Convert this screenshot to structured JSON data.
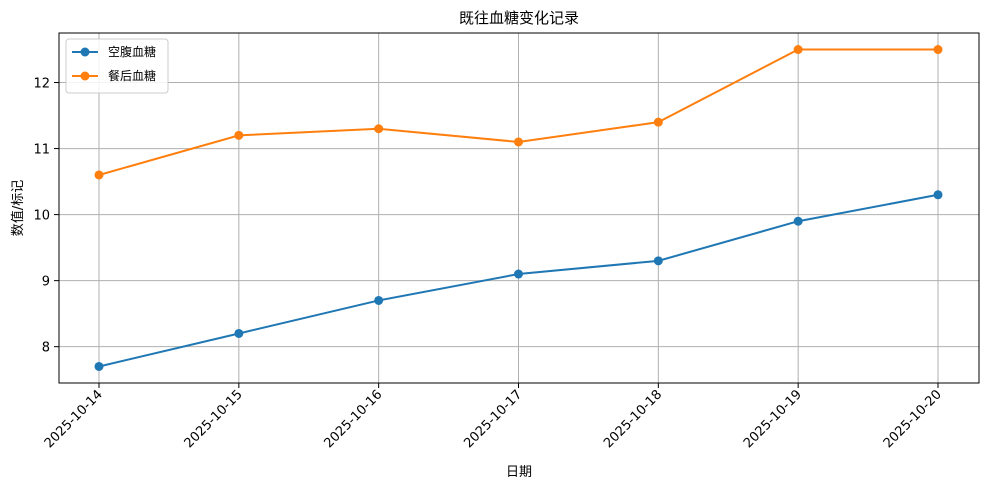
{
  "chart_data": {
    "type": "line",
    "title": "既往血糖变化记录",
    "xlabel": "日期",
    "ylabel": "数值/标记",
    "categories": [
      "2025-10-14",
      "2025-10-15",
      "2025-10-16",
      "2025-10-17",
      "2025-10-18",
      "2025-10-19",
      "2025-10-20"
    ],
    "series": [
      {
        "name": "空腹血糖",
        "color": "#1f77b4",
        "values": [
          7.7,
          8.2,
          8.7,
          9.1,
          9.3,
          9.9,
          10.3
        ]
      },
      {
        "name": "餐后血糖",
        "color": "#ff7f0e",
        "values": [
          10.6,
          11.2,
          11.3,
          11.1,
          11.4,
          12.5,
          12.5
        ]
      }
    ],
    "ylim": [
      7.45,
      12.75
    ],
    "yticks": [
      8,
      9,
      10,
      11,
      12
    ],
    "grid": true,
    "legend_position": "top-left",
    "marker": "circle"
  }
}
